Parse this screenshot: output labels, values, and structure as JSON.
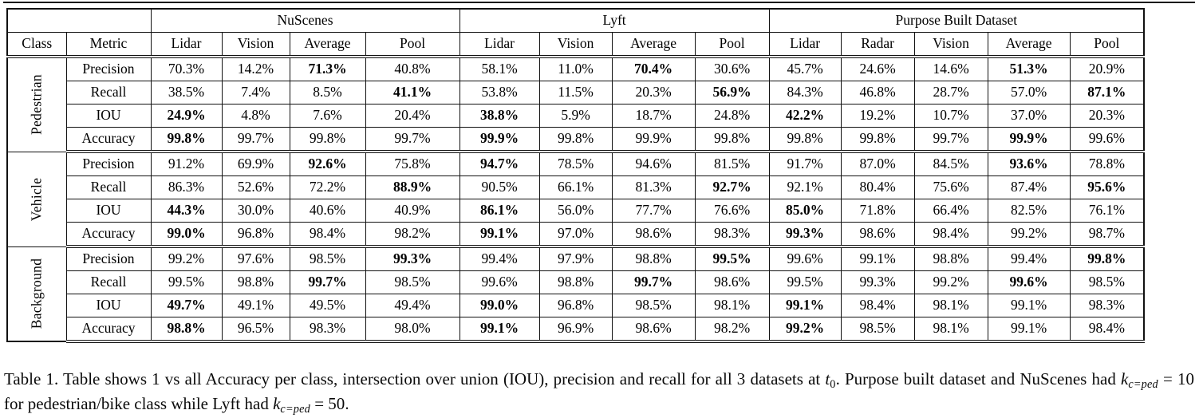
{
  "table": {
    "corner": "",
    "class_header": "Class",
    "metric_header": "Metric",
    "groups": [
      {
        "name": "NuScenes",
        "cols": [
          "Lidar",
          "Vision",
          "Average",
          "Pool"
        ]
      },
      {
        "name": "Lyft",
        "cols": [
          "Lidar",
          "Vision",
          "Average",
          "Pool"
        ]
      },
      {
        "name": "Purpose Built Dataset",
        "cols": [
          "Lidar",
          "Radar",
          "Vision",
          "Average",
          "Pool"
        ]
      }
    ],
    "rows": [
      {
        "cls": "Pedestrian",
        "metric": "Precision",
        "values": [
          "70.3%",
          "14.2%",
          "71.3%",
          "40.8%",
          "58.1%",
          "11.0%",
          "70.4%",
          "30.6%",
          "45.7%",
          "24.6%",
          "14.6%",
          "51.3%",
          "20.9%"
        ],
        "bold": [
          2,
          6,
          11
        ]
      },
      {
        "metric": "Recall",
        "values": [
          "38.5%",
          "7.4%",
          "8.5%",
          "41.1%",
          "53.8%",
          "11.5%",
          "20.3%",
          "56.9%",
          "84.3%",
          "46.8%",
          "28.7%",
          "57.0%",
          "87.1%"
        ],
        "bold": [
          3,
          7,
          12
        ]
      },
      {
        "metric": "IOU",
        "values": [
          "24.9%",
          "4.8%",
          "7.6%",
          "20.4%",
          "38.8%",
          "5.9%",
          "18.7%",
          "24.8%",
          "42.2%",
          "19.2%",
          "10.7%",
          "37.0%",
          "20.3%"
        ],
        "bold": [
          0,
          4,
          8
        ]
      },
      {
        "metric": "Accuracy",
        "values": [
          "99.8%",
          "99.7%",
          "99.8%",
          "99.7%",
          "99.9%",
          "99.8%",
          "99.9%",
          "99.8%",
          "99.8%",
          "99.8%",
          "99.7%",
          "99.9%",
          "99.6%"
        ],
        "bold": [
          0,
          4,
          11
        ]
      },
      {
        "cls": "Vehicle",
        "metric": "Precision",
        "values": [
          "91.2%",
          "69.9%",
          "92.6%",
          "75.8%",
          "94.7%",
          "78.5%",
          "94.6%",
          "81.5%",
          "91.7%",
          "87.0%",
          "84.5%",
          "93.6%",
          "78.8%"
        ],
        "bold": [
          2,
          4,
          11
        ]
      },
      {
        "metric": "Recall",
        "values": [
          "86.3%",
          "52.6%",
          "72.2%",
          "88.9%",
          "90.5%",
          "66.1%",
          "81.3%",
          "92.7%",
          "92.1%",
          "80.4%",
          "75.6%",
          "87.4%",
          "95.6%"
        ],
        "bold": [
          3,
          7,
          12
        ]
      },
      {
        "metric": "IOU",
        "values": [
          "44.3%",
          "30.0%",
          "40.6%",
          "40.9%",
          "86.1%",
          "56.0%",
          "77.7%",
          "76.6%",
          "85.0%",
          "71.8%",
          "66.4%",
          "82.5%",
          "76.1%"
        ],
        "bold": [
          0,
          4,
          8
        ]
      },
      {
        "metric": "Accuracy",
        "values": [
          "99.0%",
          "96.8%",
          "98.4%",
          "98.2%",
          "99.1%",
          "97.0%",
          "98.6%",
          "98.3%",
          "99.3%",
          "98.6%",
          "98.4%",
          "99.2%",
          "98.7%"
        ],
        "bold": [
          0,
          4,
          8
        ]
      },
      {
        "cls": "Background",
        "metric": "Precision",
        "values": [
          "99.2%",
          "97.6%",
          "98.5%",
          "99.3%",
          "99.4%",
          "97.9%",
          "98.8%",
          "99.5%",
          "99.6%",
          "99.1%",
          "98.8%",
          "99.4%",
          "99.8%"
        ],
        "bold": [
          3,
          7,
          12
        ]
      },
      {
        "metric": "Recall",
        "values": [
          "99.5%",
          "98.8%",
          "99.7%",
          "98.5%",
          "99.6%",
          "98.8%",
          "99.7%",
          "98.6%",
          "99.5%",
          "99.3%",
          "99.2%",
          "99.6%",
          "98.5%"
        ],
        "bold": [
          2,
          6,
          11
        ]
      },
      {
        "metric": "IOU",
        "values": [
          "49.7%",
          "49.1%",
          "49.5%",
          "49.4%",
          "99.0%",
          "96.8%",
          "98.5%",
          "98.1%",
          "99.1%",
          "98.4%",
          "98.1%",
          "99.1%",
          "98.3%"
        ],
        "bold": [
          0,
          4,
          8
        ]
      },
      {
        "metric": "Accuracy",
        "values": [
          "98.8%",
          "96.5%",
          "98.3%",
          "98.0%",
          "99.1%",
          "96.9%",
          "98.6%",
          "98.2%",
          "99.2%",
          "98.5%",
          "98.1%",
          "99.1%",
          "98.4%"
        ],
        "bold": [
          0,
          4,
          8
        ]
      }
    ]
  },
  "caption": {
    "text_before_t": "Table 1. Table shows 1 vs all Accuracy per class, intersection over union (IOU), precision and recall for all 3 datasets at ",
    "t_var": "t",
    "t_sub": "0",
    "text_after_t": ". Purpose built dataset and NuScenes had ",
    "k_var1": "k",
    "k_sub1": "c=ped",
    "k_eq1": " = 10",
    "text_mid": " for pedestrian/bike class while Lyft had ",
    "k_var2": "k",
    "k_sub2": "c=ped",
    "k_eq2": " = 50",
    "text_end": "."
  }
}
